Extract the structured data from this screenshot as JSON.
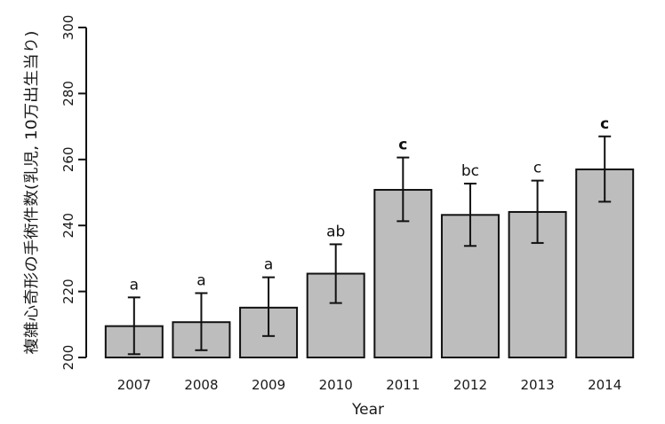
{
  "chart_data": {
    "type": "bar",
    "title": "",
    "xlabel": "Year",
    "ylabel": "複雑心奇形の手術件数(乳児, 10万出生当り)",
    "ylim": [
      200,
      300
    ],
    "yticks": [
      200,
      220,
      240,
      260,
      280,
      300
    ],
    "categories": [
      "2007",
      "2008",
      "2009",
      "2010",
      "2011",
      "2012",
      "2013",
      "2014"
    ],
    "values": [
      209.5,
      210.7,
      215.1,
      225.4,
      250.8,
      243.2,
      244.1,
      257.0
    ],
    "error_low": [
      201.0,
      202.2,
      206.5,
      216.5,
      241.3,
      233.8,
      234.7,
      247.2
    ],
    "error_high": [
      218.2,
      219.5,
      224.3,
      234.3,
      260.6,
      252.7,
      253.6,
      267.0
    ],
    "significance_labels": [
      "a",
      "a",
      "a",
      "ab",
      "c",
      "bc",
      "c",
      "c"
    ],
    "significance_bold": [
      false,
      false,
      false,
      false,
      true,
      false,
      false,
      true
    ],
    "bar_color": "#bdbdbd",
    "edge_color": "#111111",
    "grid": false,
    "legend": "none"
  }
}
